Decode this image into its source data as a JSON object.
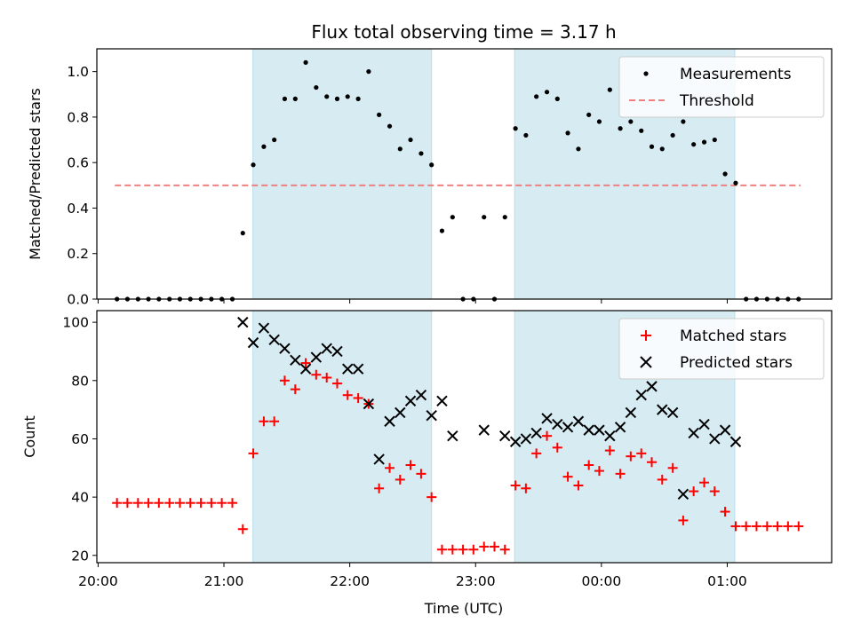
{
  "chart_data": [
    {
      "type": "scatter",
      "title": "Flux total observing time = 3.17 h",
      "ylabel": "Matched/Predicted stars",
      "xlabel": "",
      "ylim": [
        0,
        1.1
      ],
      "yticks": [
        "0.0",
        "0.2",
        "0.4",
        "0.6",
        "0.8",
        "1.0"
      ],
      "legend_position": "top-right",
      "legend": [
        "Measurements",
        "Threshold"
      ],
      "threshold": {
        "name": "Threshold",
        "value": 0.5,
        "x_start": 20.133,
        "x_end": 25.583,
        "color": "#f08080",
        "style": "dashed"
      },
      "shaded_regions": [
        [
          21.23,
          22.65
        ],
        [
          23.31,
          25.06
        ]
      ],
      "shade_color": "#add8e6",
      "series": [
        {
          "name": "Measurements",
          "marker": "dot",
          "color": "#000000",
          "x": [
            20.15,
            20.233,
            20.317,
            20.4,
            20.483,
            20.567,
            20.65,
            20.733,
            20.817,
            20.9,
            20.983,
            21.067,
            21.15,
            21.233,
            21.317,
            21.4,
            21.483,
            21.567,
            21.65,
            21.733,
            21.817,
            21.9,
            21.983,
            22.067,
            22.15,
            22.233,
            22.317,
            22.4,
            22.483,
            22.567,
            22.65,
            22.733,
            22.817,
            22.9,
            22.983,
            23.067,
            23.15,
            23.233,
            23.317,
            23.4,
            23.483,
            23.567,
            23.65,
            23.733,
            23.817,
            23.9,
            23.983,
            24.067,
            24.15,
            24.233,
            24.317,
            24.4,
            24.483,
            24.567,
            24.65,
            24.733,
            24.817,
            24.9,
            24.983,
            25.067,
            25.15,
            25.233,
            25.317,
            25.4,
            25.483,
            25.567
          ],
          "y": [
            0,
            0,
            0,
            0,
            0,
            0,
            0,
            0,
            0,
            0,
            0,
            0,
            0.29,
            0.59,
            0.67,
            0.7,
            0.88,
            0.88,
            1.04,
            0.93,
            0.89,
            0.88,
            0.89,
            0.88,
            1.0,
            0.81,
            0.76,
            0.66,
            0.7,
            0.64,
            0.59,
            0.3,
            0.36,
            0,
            0,
            0.36,
            0,
            0.36,
            0.75,
            0.72,
            0.89,
            0.91,
            0.88,
            0.73,
            0.66,
            0.81,
            0.78,
            0.92,
            0.75,
            0.78,
            0.74,
            0.67,
            0.66,
            0.72,
            0.78,
            0.68,
            0.69,
            0.7,
            0.55,
            0.51,
            0,
            0,
            0,
            0,
            0,
            0
          ]
        }
      ]
    },
    {
      "type": "scatter",
      "title": "",
      "xlabel": "Time (UTC)",
      "ylabel": "Count",
      "xlim": [
        19.99,
        25.83
      ],
      "ylim": [
        17.5,
        104
      ],
      "yticks": [
        "20",
        "40",
        "60",
        "80",
        "100"
      ],
      "xticks": [
        "20:00",
        "21:00",
        "22:00",
        "23:00",
        "00:00",
        "01:00"
      ],
      "xtick_values": [
        20,
        21,
        22,
        23,
        24,
        25
      ],
      "legend_position": "top-right",
      "legend": [
        "Matched stars",
        "Predicted stars"
      ],
      "shaded_regions": [
        [
          21.23,
          22.65
        ],
        [
          23.31,
          25.06
        ]
      ],
      "shade_color": "#add8e6",
      "series": [
        {
          "name": "Matched stars",
          "marker": "plus",
          "color": "#ff0000",
          "x": [
            20.15,
            20.233,
            20.317,
            20.4,
            20.483,
            20.567,
            20.65,
            20.733,
            20.817,
            20.9,
            20.983,
            21.067,
            21.15,
            21.233,
            21.317,
            21.4,
            21.483,
            21.567,
            21.65,
            21.733,
            21.817,
            21.9,
            21.983,
            22.067,
            22.15,
            22.233,
            22.317,
            22.4,
            22.483,
            22.567,
            22.65,
            22.733,
            22.817,
            22.9,
            22.983,
            23.067,
            23.15,
            23.233,
            23.317,
            23.4,
            23.483,
            23.567,
            23.65,
            23.733,
            23.817,
            23.9,
            23.983,
            24.067,
            24.15,
            24.233,
            24.317,
            24.4,
            24.483,
            24.567,
            24.65,
            24.733,
            24.817,
            24.9,
            24.983,
            25.067,
            25.15,
            25.233,
            25.317,
            25.4,
            25.483,
            25.567
          ],
          "y": [
            38,
            38,
            38,
            38,
            38,
            38,
            38,
            38,
            38,
            38,
            38,
            38,
            29,
            55,
            66,
            66,
            80,
            77,
            86,
            82,
            81,
            79,
            75,
            74,
            72,
            43,
            50,
            46,
            51,
            48,
            40,
            22,
            22,
            22,
            22,
            23,
            23,
            22,
            44,
            43,
            55,
            61,
            57,
            47,
            44,
            51,
            49,
            56,
            48,
            54,
            55,
            52,
            46,
            50,
            32,
            42,
            45,
            42,
            35,
            30,
            30,
            30,
            30,
            30,
            30,
            30
          ]
        },
        {
          "name": "Predicted stars",
          "marker": "x",
          "color": "#000000",
          "x": [
            21.15,
            21.233,
            21.317,
            21.4,
            21.483,
            21.567,
            21.65,
            21.733,
            21.817,
            21.9,
            21.983,
            22.067,
            22.15,
            22.233,
            22.317,
            22.4,
            22.483,
            22.567,
            22.65,
            22.733,
            22.817,
            23.067,
            23.233,
            23.317,
            23.4,
            23.483,
            23.567,
            23.65,
            23.733,
            23.817,
            23.9,
            23.983,
            24.067,
            24.15,
            24.233,
            24.317,
            24.4,
            24.483,
            24.567,
            24.65,
            24.733,
            24.817,
            24.9,
            24.983,
            25.067
          ],
          "y": [
            100,
            93,
            98,
            94,
            91,
            87,
            84,
            88,
            91,
            90,
            84,
            84,
            72,
            53,
            66,
            69,
            73,
            75,
            68,
            73,
            61,
            63,
            61,
            59,
            60,
            62,
            67,
            65,
            64,
            66,
            63,
            63,
            61,
            64,
            69,
            75,
            78,
            70,
            69,
            41,
            62,
            65,
            60,
            63,
            59
          ]
        }
      ]
    }
  ]
}
